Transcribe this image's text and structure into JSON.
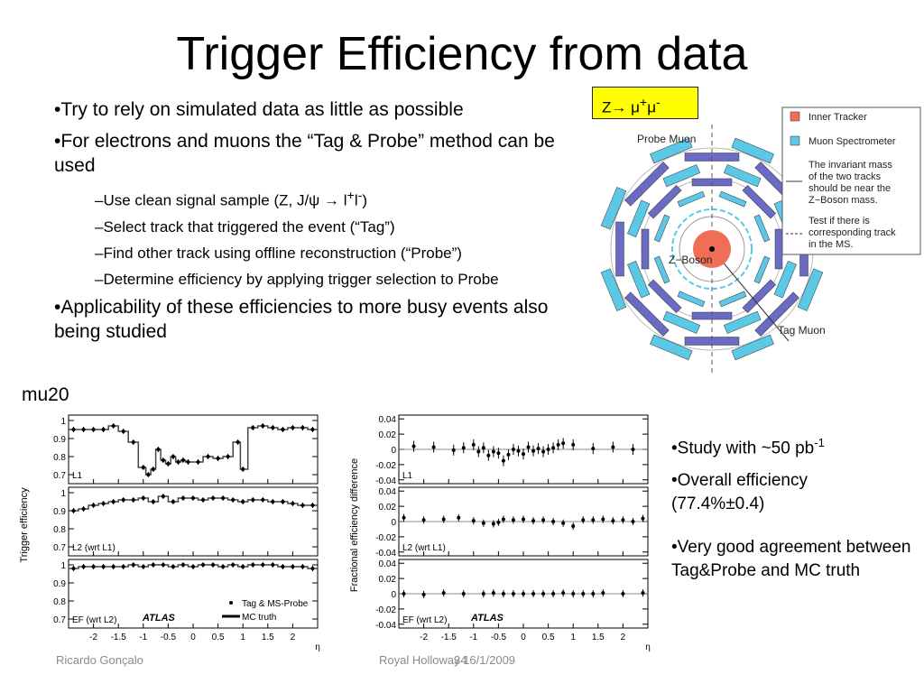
{
  "title": "Trigger Efficiency from data",
  "bullets": {
    "b1": "Try to rely on simulated data as little as possible",
    "b2": "For electrons and muons the “Tag & Probe” method can be used",
    "sub1_pre": "Use clean signal sample (Z, J/",
    "sub1_psi": "ψ",
    "sub1_arrow": " → l",
    "sub1_plus": "+",
    "sub1_l": "l",
    "sub1_minus": "-",
    "sub1_end": ")",
    "sub2": "Select track that triggered the event (“Tag”)",
    "sub3": "Find other track using offline reconstruction (“Probe”)",
    "sub4": "Determine efficiency by applying trigger selection to Probe",
    "b3": "Applicability of these efficiencies to more busy events also being studied"
  },
  "zbox": {
    "prefix": "Z→ ",
    "mu": "μ",
    "plus": "+",
    "minus": "-"
  },
  "diagram": {
    "probe_muon": "Probe Muon",
    "z_boson": "Z−Boson",
    "tag_muon": "Tag Muon",
    "legend_inner": "Inner Tracker",
    "legend_ms": "Muon Spectrometer",
    "legend_mass_1": "The invariant mass",
    "legend_mass_2": "of the two tracks",
    "legend_mass_3": "should be near the",
    "legend_mass_4": "Z−Boson mass.",
    "legend_test_1": "Test if there is",
    "legend_test_2": "corresponding track",
    "legend_test_3": "in the MS.",
    "colors": {
      "inner": "#ef6e55",
      "ms_cyan": "#5bc8e6",
      "barrel": "#6b6bc4"
    }
  },
  "mu20": "mu20",
  "right": {
    "r1_text": "Study with ~50 pb",
    "r1_sup": "-1",
    "r2_line1": "Overall efficiency",
    "r2_line2": "(77.4%±0.4)",
    "r3": "Very good agreement between Tag&Probe and MC truth"
  },
  "footer": {
    "author": "Ricardo Gonçalo",
    "venue": "Royal Holloway 16/1/2009",
    "page": "34"
  },
  "chart_data": [
    {
      "type": "scatter",
      "ylabel": "Trigger efficiency",
      "xlabel": "η",
      "xlim": [
        -2.5,
        2.5
      ],
      "x_ticks": [
        "-2",
        "-1.5",
        "-1",
        "-0.5",
        "0",
        "0.5",
        "1",
        "1.5",
        "2"
      ],
      "y_ticks": [
        "1",
        "0.9",
        "0.8",
        "0.7"
      ],
      "legend": [
        "Tag & MS-Probe",
        "MC truth"
      ],
      "watermark": "ATLAS",
      "panels": [
        {
          "label": "L1",
          "ylim": [
            0.65,
            1.03
          ],
          "x": [
            -2.4,
            -2.2,
            -2.0,
            -1.8,
            -1.6,
            -1.4,
            -1.2,
            -1.0,
            -0.9,
            -0.8,
            -0.7,
            -0.6,
            -0.5,
            -0.4,
            -0.3,
            -0.2,
            -0.1,
            0.1,
            0.3,
            0.5,
            0.7,
            0.9,
            1.0,
            1.2,
            1.4,
            1.6,
            1.8,
            2.0,
            2.2,
            2.4
          ],
          "y": [
            0.95,
            0.95,
            0.95,
            0.95,
            0.97,
            0.94,
            0.88,
            0.74,
            0.7,
            0.73,
            0.84,
            0.78,
            0.76,
            0.8,
            0.77,
            0.78,
            0.77,
            0.77,
            0.8,
            0.79,
            0.8,
            0.88,
            0.73,
            0.96,
            0.97,
            0.96,
            0.95,
            0.96,
            0.96,
            0.95
          ]
        },
        {
          "label": "L2 (wrt L1)",
          "ylim": [
            0.65,
            1.03
          ],
          "x": [
            -2.4,
            -2.2,
            -2.0,
            -1.8,
            -1.6,
            -1.4,
            -1.2,
            -1.0,
            -0.8,
            -0.6,
            -0.4,
            -0.2,
            0.0,
            0.2,
            0.4,
            0.6,
            0.8,
            1.0,
            1.2,
            1.4,
            1.6,
            1.8,
            2.0,
            2.2,
            2.4
          ],
          "y": [
            0.9,
            0.91,
            0.93,
            0.94,
            0.95,
            0.96,
            0.96,
            0.97,
            0.95,
            0.98,
            0.95,
            0.97,
            0.97,
            0.96,
            0.97,
            0.97,
            0.96,
            0.95,
            0.96,
            0.96,
            0.95,
            0.95,
            0.94,
            0.93,
            0.93
          ]
        },
        {
          "label": "EF (wrt L2)",
          "ylim": [
            0.65,
            1.03
          ],
          "x": [
            -2.4,
            -2.2,
            -2.0,
            -1.8,
            -1.6,
            -1.4,
            -1.2,
            -1.0,
            -0.8,
            -0.6,
            -0.4,
            -0.2,
            0.0,
            0.2,
            0.4,
            0.6,
            0.8,
            1.0,
            1.2,
            1.4,
            1.6,
            1.8,
            2.0,
            2.2,
            2.4
          ],
          "y": [
            0.98,
            0.99,
            0.99,
            0.99,
            0.99,
            0.99,
            1.0,
            0.99,
            1.0,
            1.0,
            0.99,
            1.0,
            0.99,
            1.0,
            1.0,
            0.99,
            1.0,
            0.99,
            1.0,
            1.0,
            1.0,
            0.99,
            0.99,
            0.99,
            0.98
          ]
        }
      ]
    },
    {
      "type": "scatter",
      "ylabel": "Fractional efficiency difference",
      "xlabel": "η",
      "xlim": [
        -2.5,
        2.5
      ],
      "x_ticks": [
        "-2",
        "-1.5",
        "-1",
        "-0.5",
        "0",
        "0.5",
        "1",
        "1.5",
        "2"
      ],
      "y_ticks": [
        "0.04",
        "0.02",
        "0",
        "-0.02",
        "-0.04"
      ],
      "watermark": "ATLAS",
      "panels": [
        {
          "label": "L1",
          "ylim": [
            -0.045,
            0.045
          ],
          "x": [
            -2.2,
            -1.8,
            -1.4,
            -1.2,
            -1.0,
            -0.9,
            -0.8,
            -0.7,
            -0.6,
            -0.5,
            -0.4,
            -0.3,
            -0.2,
            -0.1,
            0.0,
            0.1,
            0.2,
            0.3,
            0.4,
            0.5,
            0.6,
            0.7,
            0.8,
            1.0,
            1.4,
            1.8,
            2.2
          ],
          "y": [
            0.004,
            0.003,
            -0.001,
            0.002,
            0.006,
            -0.003,
            0.002,
            -0.008,
            -0.003,
            -0.005,
            -0.015,
            -0.007,
            0.0,
            -0.002,
            -0.006,
            0.003,
            -0.002,
            0.001,
            -0.003,
            0.0,
            0.002,
            0.006,
            0.008,
            0.006,
            0.001,
            0.003,
            0.0
          ]
        },
        {
          "label": "L2 (wrt L1)",
          "ylim": [
            -0.045,
            0.045
          ],
          "x": [
            -2.4,
            -2.0,
            -1.6,
            -1.3,
            -1.0,
            -0.8,
            -0.6,
            -0.5,
            -0.4,
            -0.2,
            0.0,
            0.2,
            0.4,
            0.6,
            0.8,
            1.0,
            1.2,
            1.4,
            1.6,
            1.8,
            2.0,
            2.2,
            2.4
          ],
          "y": [
            0.005,
            0.002,
            0.003,
            0.005,
            0.001,
            -0.002,
            -0.003,
            -0.001,
            0.003,
            0.002,
            0.003,
            0.001,
            0.002,
            0.0,
            -0.002,
            -0.006,
            0.002,
            0.002,
            0.003,
            0.001,
            0.002,
            0.0,
            0.004
          ]
        },
        {
          "label": "EF (wrt L2)",
          "ylim": [
            -0.045,
            0.045
          ],
          "x": [
            -2.4,
            -2.0,
            -1.6,
            -1.2,
            -0.8,
            -0.6,
            -0.4,
            -0.2,
            0.0,
            0.2,
            0.4,
            0.6,
            0.8,
            1.0,
            1.2,
            1.4,
            1.6,
            2.0,
            2.4
          ],
          "y": [
            0.0,
            -0.001,
            0.001,
            0.0,
            0.0,
            0.001,
            0.0,
            0.0,
            0.0,
            0.0,
            0.0,
            0.0,
            0.001,
            0.0,
            0.0,
            0.0,
            0.001,
            0.0,
            0.001
          ]
        }
      ]
    }
  ]
}
